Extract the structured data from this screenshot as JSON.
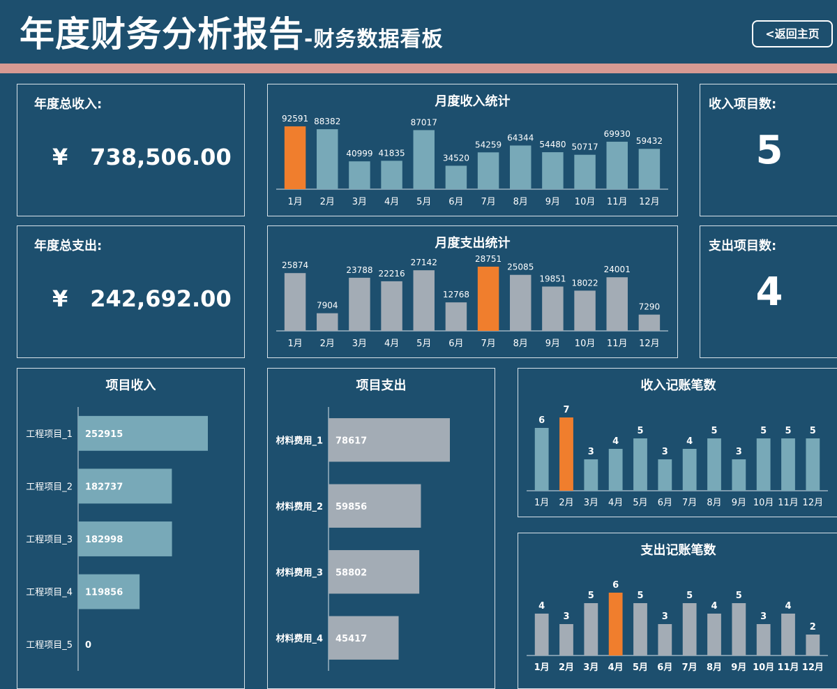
{
  "header": {
    "title": "年度财务分析报告",
    "subtitle": "-财务数据看板",
    "back_button": "<返回主页"
  },
  "colors": {
    "background": "#1d4f6e",
    "stripe": "#d69a93",
    "income_bar": "#78a9b8",
    "expense_bar": "#a3acb5",
    "highlight": "#f07e2d"
  },
  "summary": {
    "total_income_label": "年度总收入:",
    "total_income_currency": "¥",
    "total_income_value": "738,506.00",
    "total_expense_label": "年度总支出:",
    "total_expense_currency": "¥",
    "total_expense_value": "242,692.00",
    "income_items_label": "收入项目数:",
    "income_items_value": "5",
    "expense_items_label": "支出项目数:",
    "expense_items_value": "4"
  },
  "chart_data": [
    {
      "id": "monthly-income",
      "type": "bar",
      "title": "月度收入统计",
      "categories": [
        "1月",
        "2月",
        "3月",
        "4月",
        "5月",
        "6月",
        "7月",
        "8月",
        "9月",
        "10月",
        "11月",
        "12月"
      ],
      "values": [
        92591,
        88382,
        40999,
        41835,
        87017,
        34520,
        54259,
        64344,
        54480,
        50717,
        69930,
        59432
      ],
      "highlight_index": 0
    },
    {
      "id": "monthly-expense",
      "type": "bar",
      "title": "月度支出统计",
      "categories": [
        "1月",
        "2月",
        "3月",
        "4月",
        "5月",
        "6月",
        "7月",
        "8月",
        "9月",
        "10月",
        "11月",
        "12月"
      ],
      "values": [
        25874,
        7904,
        23788,
        22216,
        27142,
        12768,
        28751,
        25085,
        19851,
        18022,
        24001,
        7290
      ],
      "highlight_index": 6
    },
    {
      "id": "project-income",
      "type": "bar",
      "orientation": "horizontal",
      "title": "项目收入",
      "categories": [
        "工程项目_1",
        "工程项目_2",
        "工程项目_3",
        "工程项目_4",
        "工程项目_5"
      ],
      "values": [
        252915,
        182737,
        182998,
        119856,
        0
      ]
    },
    {
      "id": "project-expense",
      "type": "bar",
      "orientation": "horizontal",
      "title": "项目支出",
      "categories": [
        "材料费用_1",
        "材料费用_2",
        "材料费用_3",
        "材料费用_4"
      ],
      "values": [
        78617,
        59856,
        58802,
        45417
      ]
    },
    {
      "id": "income-count",
      "type": "bar",
      "title": "收入记账笔数",
      "categories": [
        "1月",
        "2月",
        "3月",
        "4月",
        "5月",
        "6月",
        "7月",
        "8月",
        "9月",
        "10月",
        "11月",
        "12月"
      ],
      "values": [
        6,
        7,
        3,
        4,
        5,
        3,
        4,
        5,
        3,
        5,
        5,
        5
      ],
      "highlight_index": 1
    },
    {
      "id": "expense-count",
      "type": "bar",
      "title": "支出记账笔数",
      "categories": [
        "1月",
        "2月",
        "3月",
        "4月",
        "5月",
        "6月",
        "7月",
        "8月",
        "9月",
        "10月",
        "11月",
        "12月"
      ],
      "values": [
        4,
        3,
        5,
        6,
        5,
        3,
        5,
        4,
        5,
        3,
        4,
        2
      ],
      "highlight_index": 3
    }
  ]
}
